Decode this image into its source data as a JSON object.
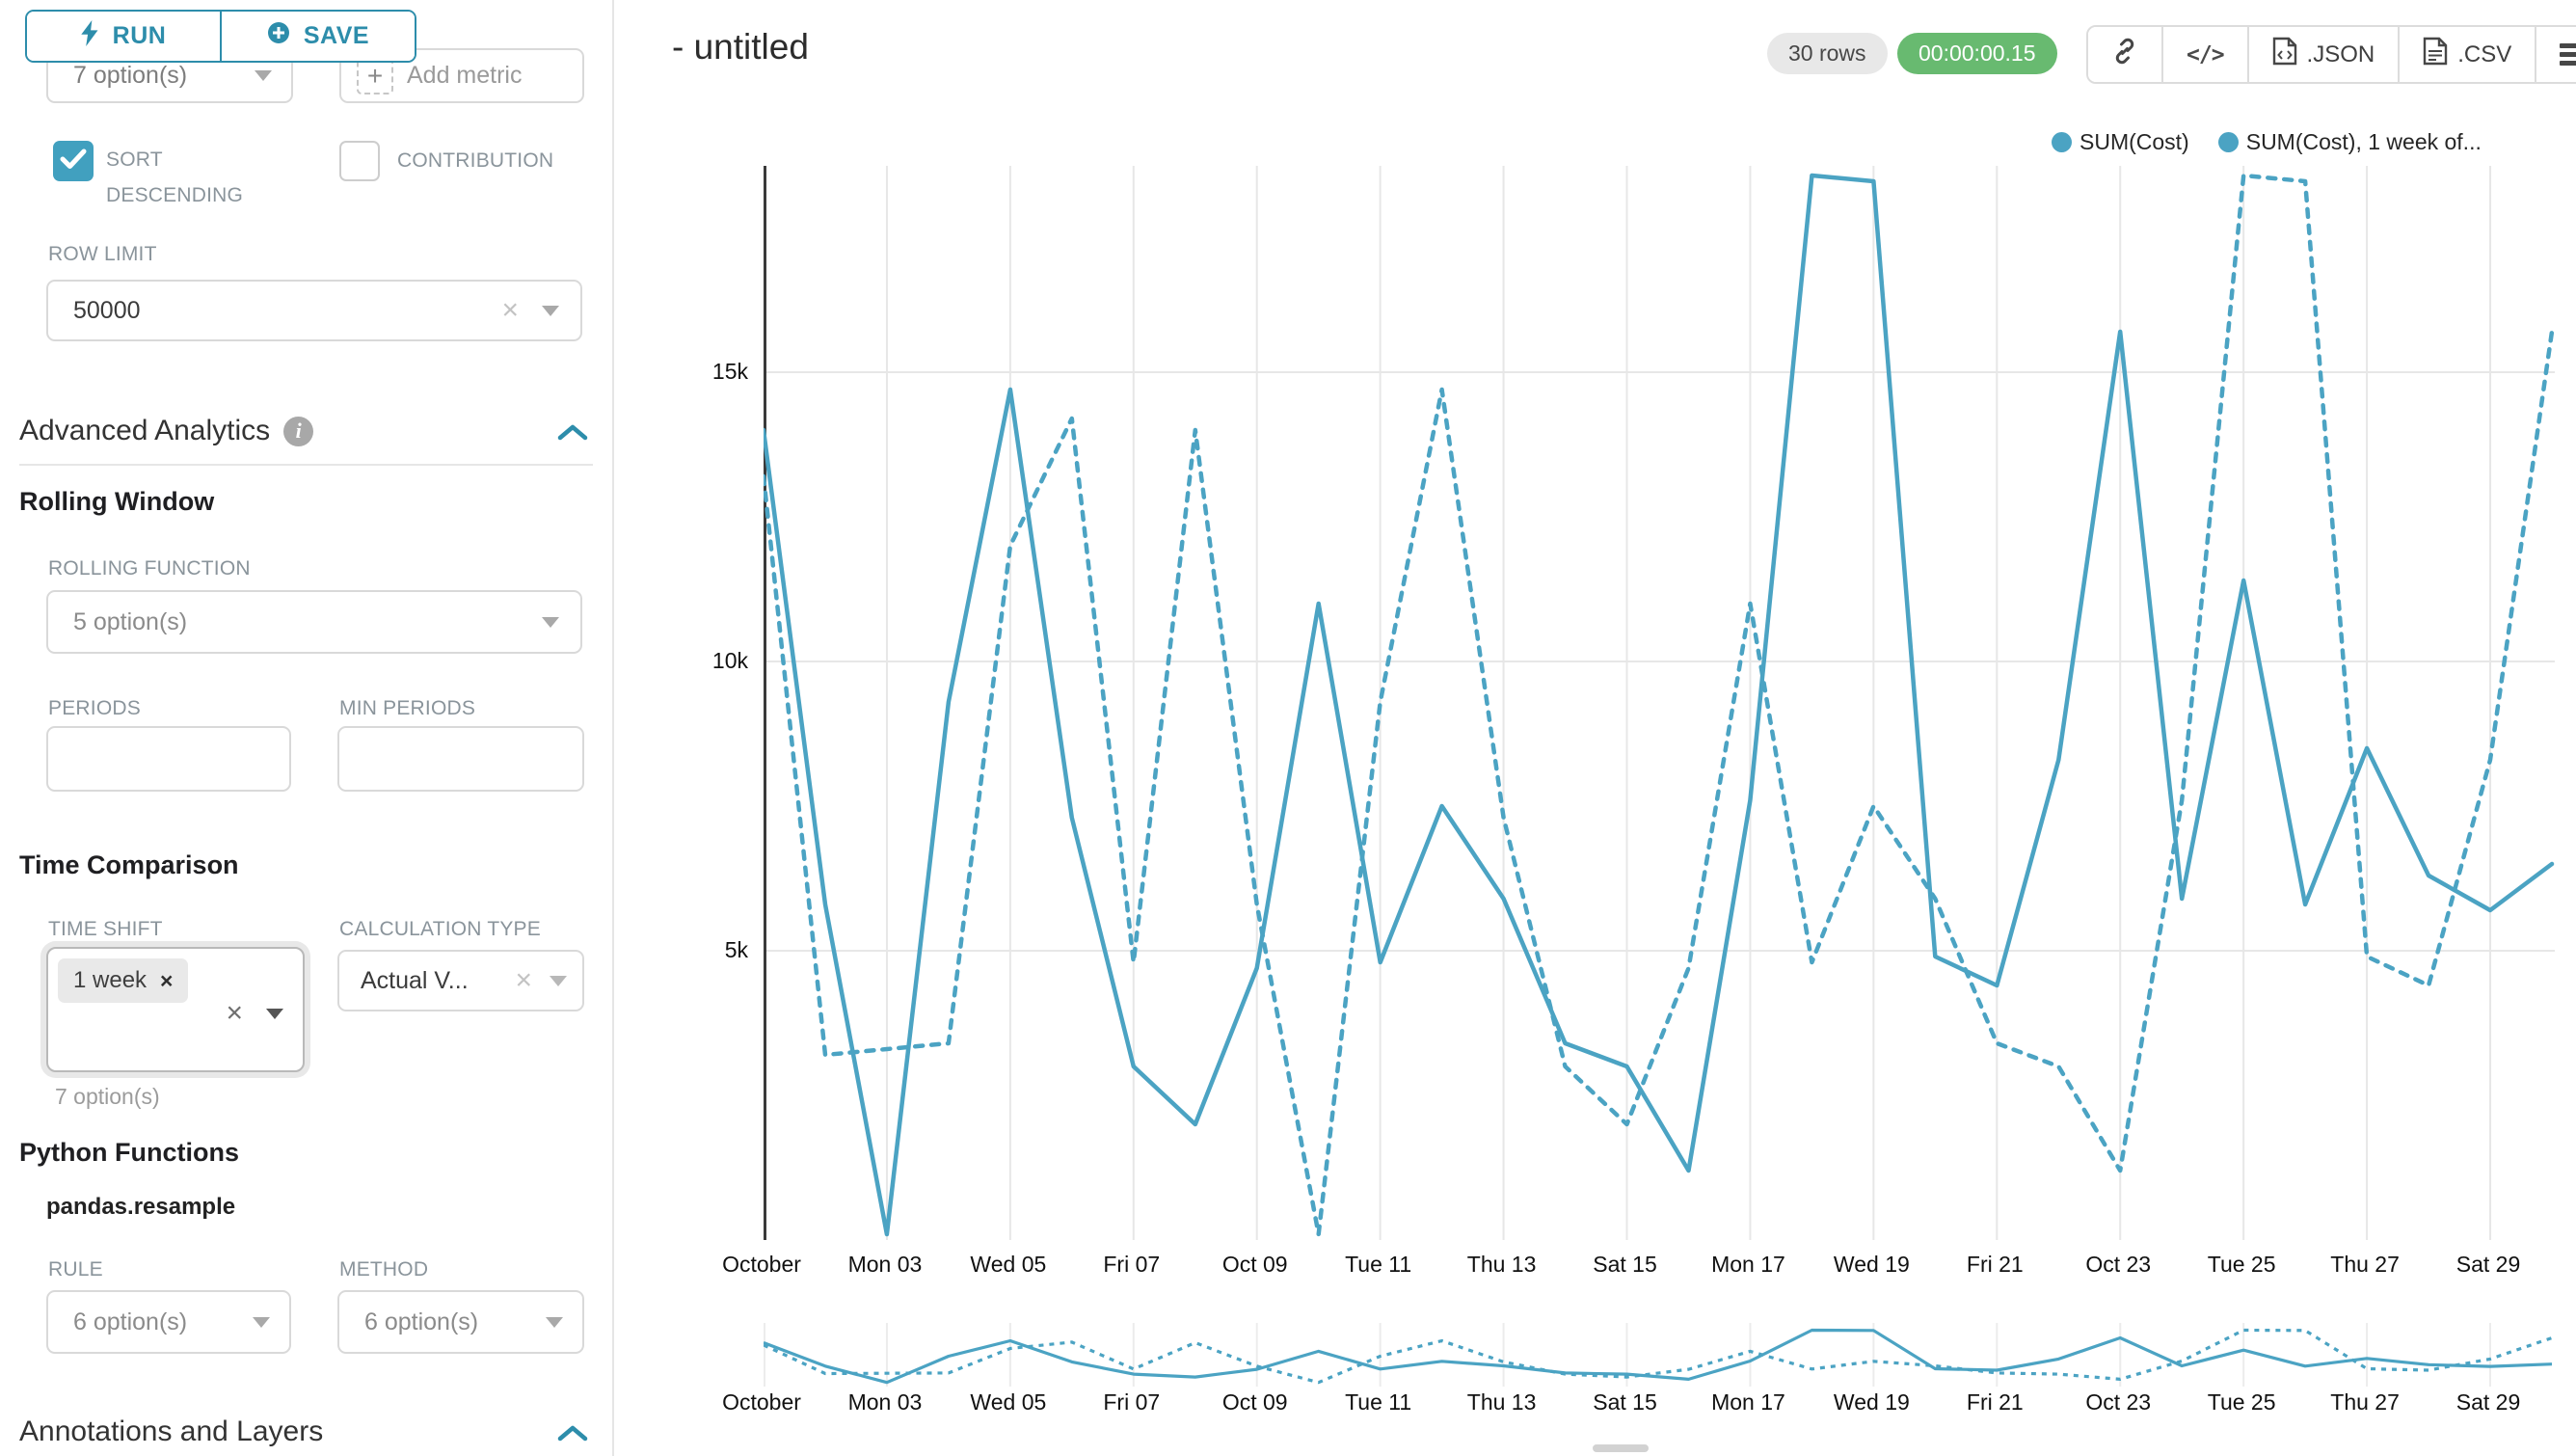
{
  "colors": {
    "accent": "#2d8dab",
    "checkbox": "#41a0bf",
    "line": "#4ba3c3",
    "timer_green": "#68ba70",
    "grid": "#e7e7e7",
    "axis": "#3a3a3a"
  },
  "sidebar": {
    "run_label": "RUN",
    "save_label": "SAVE",
    "groupby_value": "7 option(s)",
    "add_metric_label": "Add metric",
    "sort_descending_label": "SORT DESCENDING",
    "contribution_label": "CONTRIBUTION",
    "row_limit_label": "ROW LIMIT",
    "row_limit_value": "50000",
    "advanced_analytics_title": "Advanced Analytics",
    "rolling_window": {
      "title": "Rolling Window",
      "rolling_function_label": "ROLLING FUNCTION",
      "rolling_function_value": "5 option(s)",
      "periods_label": "PERIODS",
      "min_periods_label": "MIN PERIODS"
    },
    "time_comparison": {
      "title": "Time Comparison",
      "time_shift_label": "TIME SHIFT",
      "time_shift_tag": "1 week",
      "time_shift_helper": "7 option(s)",
      "calculation_type_label": "CALCULATION TYPE",
      "calculation_type_value": "Actual V..."
    },
    "python_functions": {
      "title": "Python Functions",
      "subtitle": "pandas.resample",
      "rule_label": "RULE",
      "rule_value": "6 option(s)",
      "method_label": "METHOD",
      "method_value": "6 option(s)"
    },
    "annotations_title": "Annotations and Layers"
  },
  "header": {
    "title": "- untitled",
    "rows_badge": "30 rows",
    "timer_badge": "00:00:00.15",
    "json_label": ".JSON",
    "csv_label": ".CSV"
  },
  "chart_data": {
    "type": "line",
    "title": "- untitled",
    "categories": [
      "Oct 01",
      "Oct 02",
      "Oct 03",
      "Oct 04",
      "Oct 05",
      "Oct 06",
      "Oct 07",
      "Oct 08",
      "Oct 09",
      "Oct 10",
      "Oct 11",
      "Oct 12",
      "Oct 13",
      "Oct 14",
      "Oct 15",
      "Oct 16",
      "Oct 17",
      "Oct 18",
      "Oct 19",
      "Oct 20",
      "Oct 21",
      "Oct 22",
      "Oct 23",
      "Oct 24",
      "Oct 25",
      "Oct 26",
      "Oct 27",
      "Oct 28",
      "Oct 29",
      "Oct 30"
    ],
    "series": [
      {
        "name": "SUM(Cost)",
        "legend_label": "SUM(Cost)",
        "line_style": "solid",
        "values": [
          14000,
          5800,
          100,
          9300,
          14700,
          7300,
          3000,
          2000,
          4700,
          11000,
          4800,
          7500,
          5900,
          3400,
          3000,
          1200,
          7600,
          18400,
          18300,
          4900,
          4400,
          8300,
          15700,
          5900,
          11400,
          5800,
          8500,
          6300,
          5700,
          6500
        ]
      },
      {
        "name": "SUM(Cost), 1 week offset",
        "legend_label": "SUM(Cost), 1 week of...",
        "line_style": "dashed",
        "values": [
          13200,
          3200,
          3300,
          3400,
          12000,
          14200,
          4800,
          14000,
          5800,
          100,
          9300,
          14700,
          7300,
          3000,
          2000,
          4700,
          11000,
          4800,
          7500,
          5900,
          3400,
          3000,
          1200,
          7600,
          18400,
          18300,
          4900,
          4400,
          8300,
          15700
        ]
      }
    ],
    "x_tick_labels": [
      "October",
      "Mon 03",
      "Wed 05",
      "Fri 07",
      "Oct 09",
      "Tue 11",
      "Thu 13",
      "Sat 15",
      "Mon 17",
      "Wed 19",
      "Fri 21",
      "Oct 23",
      "Tue 25",
      "Thu 27",
      "Sat 29"
    ],
    "y_ticks": [
      {
        "label": "5k",
        "value": 5000
      },
      {
        "label": "10k",
        "value": 10000
      },
      {
        "label": "15k",
        "value": 15000
      }
    ],
    "ylim": [
      0,
      18570
    ],
    "grid": true,
    "legend_position": "top-right",
    "has_mini_preview": true
  }
}
